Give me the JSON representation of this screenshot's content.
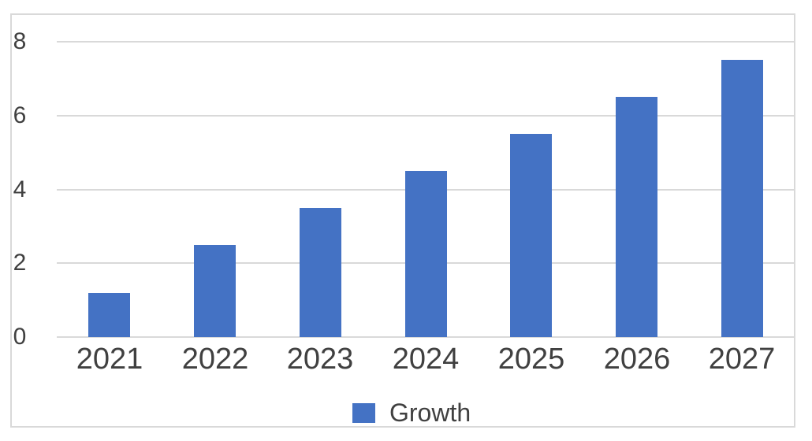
{
  "chart_data": {
    "type": "bar",
    "title": "",
    "categories": [
      "2021",
      "2022",
      "2023",
      "2024",
      "2025",
      "2026",
      "2027"
    ],
    "series": [
      {
        "name": "Growth",
        "values": [
          1.2,
          2.5,
          3.5,
          4.5,
          5.5,
          6.5,
          7.5
        ],
        "color": "#4472C4"
      }
    ],
    "xlabel": "",
    "ylabel": "",
    "ylim": [
      0,
      8
    ],
    "yticks": [
      0,
      2,
      4,
      6,
      8
    ],
    "grid": "horizontal",
    "legend_position": "bottom"
  },
  "colors": {
    "bar_fill": "#4472C4",
    "gridline": "#d9d9d9",
    "frame_border": "#d9d9d9",
    "axis_text": "#404040",
    "background": "#ffffff"
  },
  "legend": {
    "label": "Growth"
  }
}
